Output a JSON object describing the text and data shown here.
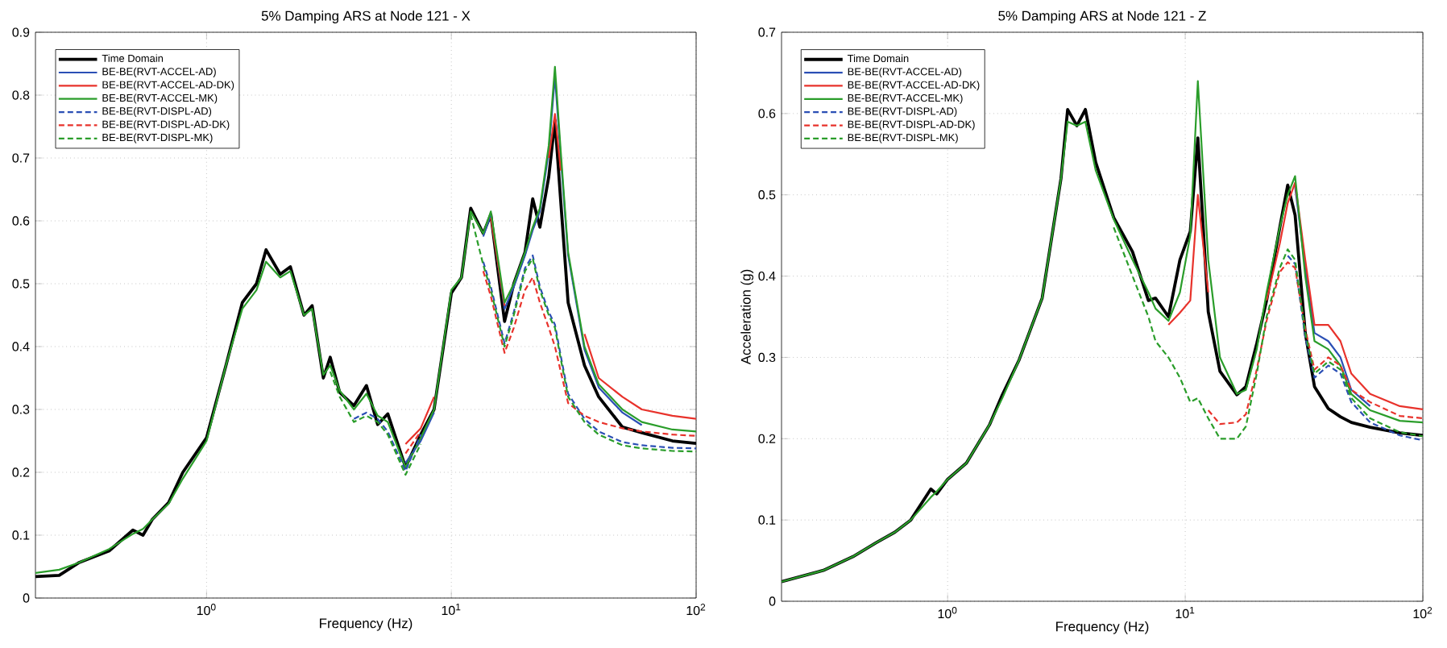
{
  "chart_data": [
    {
      "type": "line",
      "title": "5% Damping ARS at Node 121 - X",
      "xlabel": "Frequency (Hz)",
      "log": "x",
      "grid": true,
      "legend": "top left",
      "xlim": [
        0.2,
        100
      ],
      "xticks": [
        {
          "value": 1,
          "label": "10$^{0}$"
        },
        {
          "value": 10,
          "label": "10$^{1}$"
        },
        {
          "value": 100,
          "label": "10$^{2}$"
        }
      ],
      "ylim": [
        0,
        0.9
      ],
      "yticks": [
        0,
        0.1,
        0.2,
        0.3,
        0.4,
        0.5,
        0.6,
        0.7,
        0.8,
        0.9
      ],
      "x": [
        0.2,
        0.25,
        0.3,
        0.4,
        0.5,
        0.55,
        0.6,
        0.7,
        0.8,
        1,
        1.2,
        1.4,
        1.6,
        1.75,
        2,
        2.2,
        2.5,
        2.7,
        3,
        3.2,
        3.5,
        4,
        4.5,
        5,
        5.5,
        6.5,
        7.5,
        8.5,
        10,
        11,
        12,
        13.5,
        14.5,
        16.5,
        18,
        20,
        21.5,
        23,
        25,
        26.5,
        28,
        30,
        35,
        40,
        50,
        60,
        80,
        100
      ],
      "series": [
        {
          "name": "Time Domain",
          "color": "#000000",
          "line_style": "solid",
          "values": [
            0.034,
            0.036,
            0.056,
            0.075,
            0.108,
            0.1,
            0.125,
            0.152,
            0.2,
            0.255,
            0.37,
            0.47,
            0.5,
            0.554,
            0.515,
            0.527,
            0.45,
            0.465,
            0.35,
            0.383,
            0.327,
            0.306,
            0.338,
            0.276,
            0.293,
            0.208,
            0.26,
            0.3,
            0.485,
            0.51,
            0.62,
            0.58,
            0.61,
            0.44,
            0.5,
            0.55,
            0.635,
            0.59,
            0.67,
            0.76,
            0.63,
            0.47,
            0.37,
            0.32,
            0.272,
            0.263,
            0.25,
            0.246
          ]
        },
        {
          "name": "BE-BE(RVT-ACCEL-AD)",
          "color": "#2b4fb5",
          "line_style": "solid",
          "values": [
            null,
            null,
            null,
            null,
            null,
            null,
            null,
            null,
            null,
            null,
            null,
            null,
            null,
            null,
            null,
            null,
            null,
            null,
            null,
            null,
            null,
            null,
            null,
            null,
            null,
            0.215,
            0.25,
            0.295,
            null,
            null,
            null,
            0.575,
            0.61,
            0.46,
            0.495,
            0.545,
            0.585,
            0.615,
            0.71,
            0.83,
            0.7,
            0.545,
            0.395,
            0.335,
            0.295,
            0.275,
            null,
            null
          ]
        },
        {
          "name": "BE-BE(RVT-ACCEL-AD-DK)",
          "color": "#e8322b",
          "line_style": "solid",
          "values": [
            null,
            null,
            null,
            null,
            null,
            null,
            null,
            null,
            null,
            null,
            null,
            null,
            null,
            null,
            null,
            null,
            null,
            null,
            null,
            null,
            null,
            null,
            null,
            null,
            null,
            0.245,
            0.27,
            0.32,
            null,
            null,
            null,
            null,
            0.605,
            0.465,
            null,
            null,
            null,
            null,
            0.7,
            0.77,
            0.68,
            null,
            0.42,
            0.35,
            0.32,
            0.3,
            0.29,
            0.285
          ]
        },
        {
          "name": "BE-BE(RVT-ACCEL-MK)",
          "color": "#2a9d2a",
          "line_style": "solid",
          "values": [
            0.04,
            0.045,
            0.056,
            0.078,
            0.102,
            0.11,
            0.125,
            0.15,
            0.19,
            0.25,
            0.37,
            0.46,
            0.49,
            0.535,
            0.51,
            0.52,
            0.45,
            0.46,
            0.355,
            0.37,
            0.33,
            0.3,
            0.325,
            0.29,
            0.28,
            0.208,
            0.255,
            0.3,
            0.49,
            0.51,
            0.615,
            0.58,
            0.615,
            0.47,
            0.5,
            0.55,
            0.59,
            0.62,
            0.72,
            0.845,
            0.71,
            0.55,
            0.4,
            0.34,
            0.3,
            0.28,
            0.268,
            0.265
          ]
        },
        {
          "name": "BE-BE(RVT-DISPL-AD)",
          "color": "#2b4fb5",
          "line_style": "dashed",
          "values": [
            null,
            null,
            null,
            null,
            null,
            null,
            null,
            null,
            null,
            null,
            null,
            null,
            null,
            null,
            null,
            null,
            null,
            null,
            null,
            null,
            null,
            0.285,
            0.295,
            0.285,
            0.265,
            0.202,
            0.26,
            null,
            null,
            null,
            null,
            0.535,
            0.495,
            0.405,
            0.455,
            0.525,
            0.545,
            0.495,
            0.455,
            0.435,
            0.385,
            0.325,
            0.285,
            0.265,
            0.248,
            0.243,
            0.239,
            0.238
          ]
        },
        {
          "name": "BE-BE(RVT-DISPL-AD-DK)",
          "color": "#e8322b",
          "line_style": "dashed",
          "values": [
            null,
            null,
            null,
            null,
            null,
            null,
            null,
            null,
            null,
            null,
            null,
            null,
            null,
            null,
            null,
            null,
            null,
            null,
            null,
            null,
            null,
            null,
            null,
            null,
            null,
            0.23,
            0.265,
            null,
            null,
            null,
            null,
            0.52,
            0.48,
            0.39,
            0.43,
            0.49,
            0.51,
            0.47,
            0.43,
            0.4,
            0.36,
            0.31,
            0.29,
            0.28,
            0.27,
            0.265,
            0.26,
            0.258
          ]
        },
        {
          "name": "BE-BE(RVT-DISPL-MK)",
          "color": "#2a9d2a",
          "line_style": "dashed",
          "values": [
            null,
            null,
            null,
            null,
            null,
            null,
            null,
            null,
            null,
            null,
            null,
            null,
            null,
            null,
            null,
            null,
            null,
            null,
            null,
            0.36,
            0.32,
            0.28,
            0.29,
            0.28,
            0.26,
            0.196,
            0.245,
            null,
            null,
            null,
            0.61,
            0.53,
            0.49,
            0.4,
            0.45,
            0.52,
            0.54,
            0.49,
            0.45,
            0.43,
            0.38,
            0.32,
            0.28,
            0.26,
            0.243,
            0.238,
            0.234,
            0.233
          ]
        }
      ]
    },
    {
      "type": "line",
      "title": "5% Damping ARS at Node 121 - Z",
      "xlabel": "Frequency (Hz)",
      "ylabel": "Acceleration (g)",
      "log": "x",
      "grid": true,
      "legend": "top left",
      "xlim": [
        0.2,
        100
      ],
      "xticks": [
        {
          "value": 1,
          "label": "10$^{0}$"
        },
        {
          "value": 10,
          "label": "10$^{1}$"
        },
        {
          "value": 100,
          "label": "10$^{2}$"
        }
      ],
      "ylim": [
        0,
        0.7
      ],
      "yticks": [
        0,
        0.1,
        0.2,
        0.3,
        0.4,
        0.5,
        0.6,
        0.7
      ],
      "x": [
        0.2,
        0.3,
        0.4,
        0.5,
        0.6,
        0.7,
        0.85,
        0.9,
        1,
        1.2,
        1.5,
        1.7,
        2,
        2.5,
        3,
        3.2,
        3.5,
        3.8,
        4.2,
        5,
        6,
        7,
        7.5,
        8.5,
        9.5,
        10.5,
        11.3,
        12.5,
        14,
        16.5,
        18,
        20,
        22,
        25,
        27,
        29,
        32,
        35,
        40,
        45,
        50,
        60,
        80,
        100
      ],
      "series": [
        {
          "name": "Time Domain",
          "color": "#000000",
          "line_style": "solid",
          "values": [
            0.024,
            0.038,
            0.055,
            0.072,
            0.085,
            0.1,
            0.138,
            0.132,
            0.15,
            0.17,
            0.217,
            0.254,
            0.297,
            0.373,
            0.52,
            0.605,
            0.585,
            0.605,
            0.54,
            0.472,
            0.43,
            0.37,
            0.373,
            0.35,
            0.42,
            0.455,
            0.57,
            0.356,
            0.283,
            0.254,
            0.264,
            0.317,
            0.37,
            0.46,
            0.512,
            0.475,
            0.33,
            0.264,
            0.237,
            0.227,
            0.22,
            0.214,
            0.207,
            0.204
          ]
        },
        {
          "name": "BE-BE(RVT-ACCEL-AD)",
          "color": "#2b4fb5",
          "line_style": "solid",
          "values": [
            null,
            null,
            null,
            null,
            null,
            null,
            null,
            null,
            null,
            null,
            null,
            null,
            null,
            null,
            null,
            null,
            null,
            null,
            null,
            null,
            null,
            null,
            null,
            null,
            null,
            null,
            null,
            null,
            null,
            null,
            null,
            null,
            null,
            null,
            null,
            0.51,
            0.41,
            0.33,
            0.32,
            0.3,
            0.26,
            0.24,
            null,
            null
          ]
        },
        {
          "name": "BE-BE(RVT-ACCEL-AD-DK)",
          "color": "#e8322b",
          "line_style": "solid",
          "values": [
            null,
            null,
            null,
            null,
            null,
            null,
            null,
            null,
            null,
            null,
            null,
            null,
            null,
            null,
            null,
            null,
            null,
            null,
            null,
            null,
            null,
            null,
            null,
            0.34,
            0.355,
            0.37,
            0.5,
            0.38,
            null,
            null,
            null,
            null,
            0.37,
            0.44,
            0.49,
            0.515,
            0.42,
            0.34,
            0.34,
            0.32,
            0.28,
            0.255,
            0.24,
            0.236
          ]
        },
        {
          "name": "BE-BE(RVT-ACCEL-MK)",
          "color": "#2a9d2a",
          "line_style": "solid",
          "values": [
            0.024,
            0.038,
            0.055,
            0.072,
            0.085,
            0.1,
            0.128,
            0.135,
            0.15,
            0.17,
            0.217,
            0.25,
            0.297,
            0.373,
            0.52,
            0.59,
            0.585,
            0.59,
            0.53,
            0.47,
            0.42,
            0.38,
            0.36,
            0.345,
            0.38,
            0.45,
            0.64,
            0.42,
            0.3,
            0.255,
            0.26,
            0.31,
            0.38,
            0.46,
            0.5,
            0.523,
            0.4,
            0.32,
            0.31,
            0.29,
            0.255,
            0.235,
            0.222,
            0.22
          ]
        },
        {
          "name": "BE-BE(RVT-DISPL-AD)",
          "color": "#2b4fb5",
          "line_style": "dashed",
          "values": [
            null,
            null,
            null,
            null,
            null,
            null,
            null,
            null,
            null,
            null,
            null,
            null,
            null,
            null,
            null,
            null,
            null,
            null,
            null,
            null,
            null,
            null,
            null,
            null,
            null,
            null,
            null,
            null,
            null,
            null,
            null,
            null,
            null,
            null,
            0.425,
            0.415,
            0.325,
            0.275,
            0.29,
            0.28,
            0.245,
            0.22,
            0.204,
            0.198
          ]
        },
        {
          "name": "BE-BE(RVT-DISPL-AD-DK)",
          "color": "#e8322b",
          "line_style": "dashed",
          "values": [
            null,
            null,
            null,
            null,
            null,
            null,
            null,
            null,
            null,
            null,
            null,
            null,
            null,
            null,
            null,
            null,
            null,
            null,
            null,
            null,
            null,
            null,
            null,
            null,
            null,
            null,
            null,
            0.235,
            0.218,
            0.22,
            0.23,
            0.285,
            0.345,
            0.405,
            0.417,
            0.41,
            0.335,
            0.285,
            0.3,
            0.29,
            0.26,
            0.245,
            0.228,
            0.225
          ]
        },
        {
          "name": "BE-BE(RVT-DISPL-MK)",
          "color": "#2a9d2a",
          "line_style": "dashed",
          "values": [
            null,
            null,
            null,
            null,
            null,
            null,
            null,
            null,
            null,
            null,
            null,
            null,
            null,
            null,
            null,
            null,
            null,
            null,
            null,
            0.46,
            0.4,
            0.35,
            0.32,
            0.3,
            0.275,
            0.245,
            0.25,
            0.225,
            0.2,
            0.2,
            0.215,
            0.28,
            0.35,
            0.41,
            0.433,
            0.42,
            0.33,
            0.28,
            0.295,
            0.285,
            0.25,
            0.225,
            0.208,
            0.203
          ]
        }
      ]
    }
  ]
}
